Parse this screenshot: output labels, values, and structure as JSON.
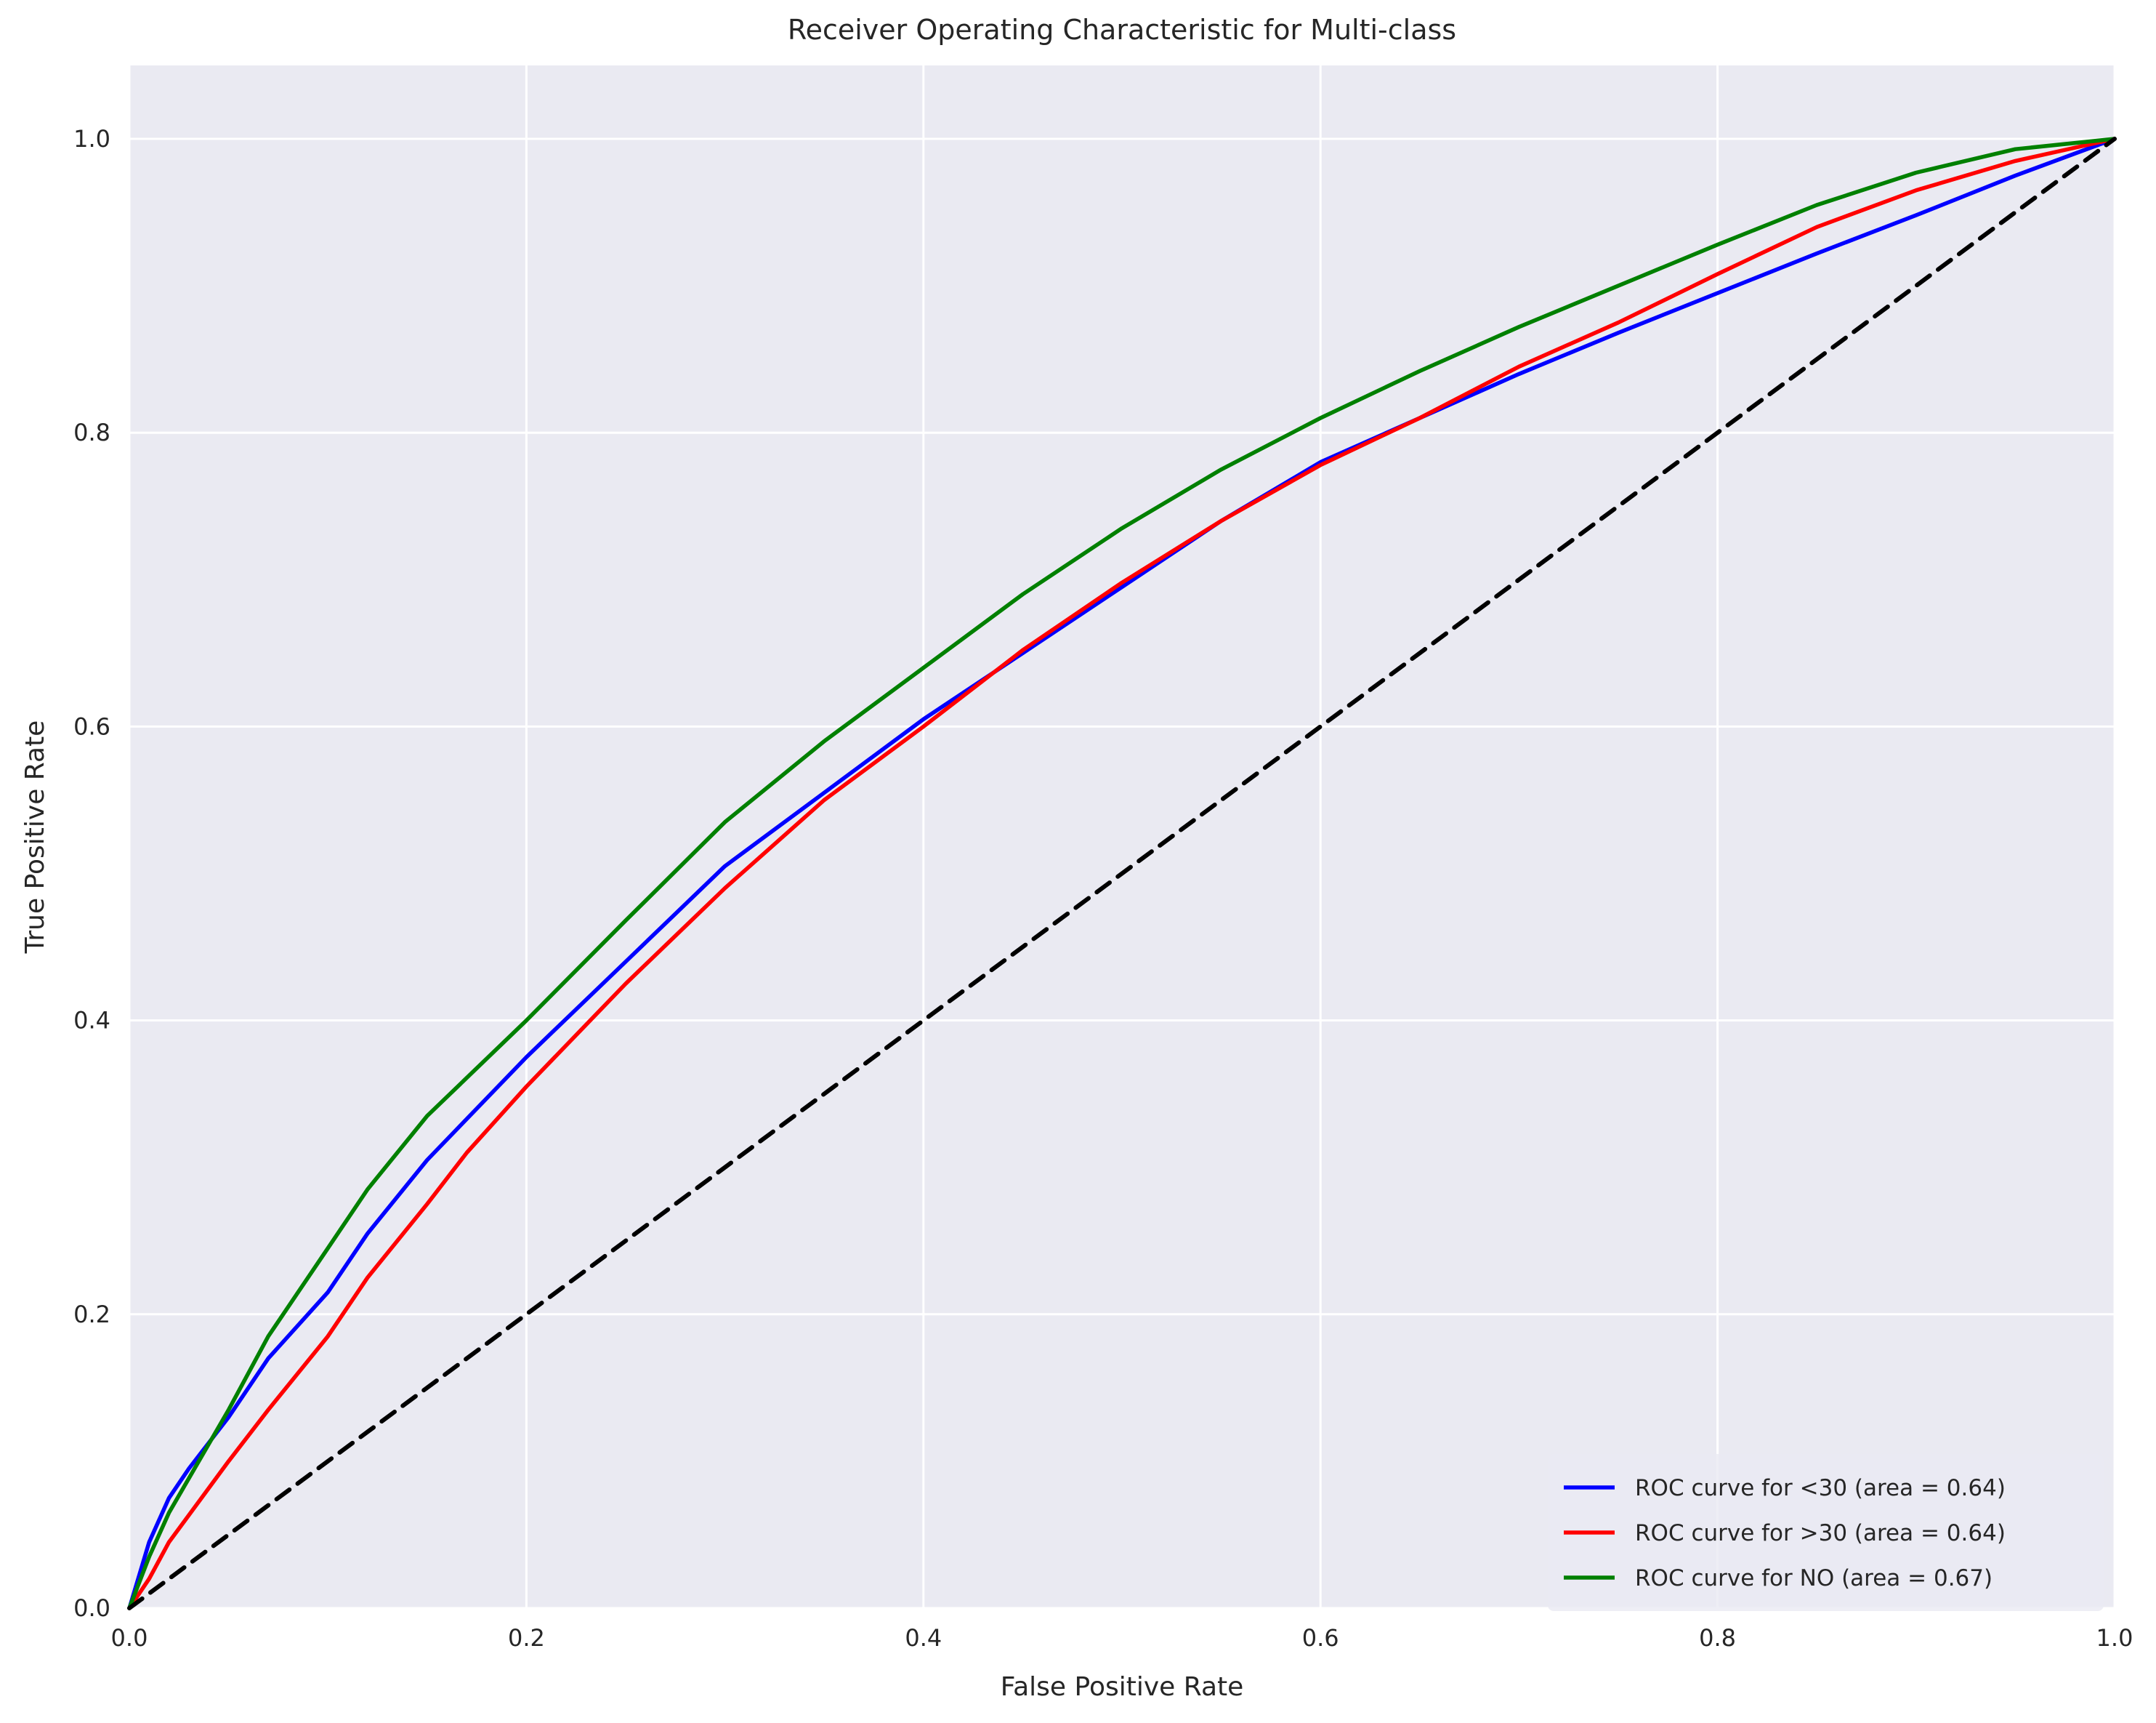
{
  "chart_data": {
    "type": "line",
    "title": "Receiver Operating Characteristic for Multi-class",
    "xlabel": "False Positive Rate",
    "ylabel": "True Positive Rate",
    "xlim": [
      0.0,
      1.0
    ],
    "ylim": [
      0.0,
      1.05
    ],
    "xticks": [
      0.0,
      0.2,
      0.4,
      0.6,
      0.8,
      1.0
    ],
    "xtick_labels": [
      "0.0",
      "0.2",
      "0.4",
      "0.6",
      "0.8",
      "1.0"
    ],
    "yticks": [
      0.0,
      0.2,
      0.4,
      0.6,
      0.8,
      1.0
    ],
    "ytick_labels": [
      "0.0",
      "0.2",
      "0.4",
      "0.6",
      "0.8",
      "1.0"
    ],
    "grid": true,
    "legend_position": "lower-right",
    "background_color": "#eaeaf2",
    "series": [
      {
        "name": "ROC curve for <30 (area = 0.64)",
        "color": "#0000ff",
        "points": [
          [
            0.0,
            0.0
          ],
          [
            0.01,
            0.045
          ],
          [
            0.02,
            0.075
          ],
          [
            0.03,
            0.095
          ],
          [
            0.05,
            0.13
          ],
          [
            0.07,
            0.17
          ],
          [
            0.1,
            0.215
          ],
          [
            0.12,
            0.255
          ],
          [
            0.15,
            0.305
          ],
          [
            0.2,
            0.375
          ],
          [
            0.25,
            0.44
          ],
          [
            0.3,
            0.505
          ],
          [
            0.35,
            0.555
          ],
          [
            0.4,
            0.605
          ],
          [
            0.45,
            0.65
          ],
          [
            0.5,
            0.695
          ],
          [
            0.55,
            0.74
          ],
          [
            0.6,
            0.78
          ],
          [
            0.65,
            0.81
          ],
          [
            0.7,
            0.84
          ],
          [
            0.75,
            0.868
          ],
          [
            0.8,
            0.895
          ],
          [
            0.85,
            0.922
          ],
          [
            0.9,
            0.948
          ],
          [
            0.95,
            0.975
          ],
          [
            1.0,
            1.0
          ]
        ]
      },
      {
        "name": "ROC curve for >30 (area = 0.64)",
        "color": "#ff0000",
        "points": [
          [
            0.0,
            0.0
          ],
          [
            0.01,
            0.02
          ],
          [
            0.02,
            0.045
          ],
          [
            0.05,
            0.1
          ],
          [
            0.07,
            0.135
          ],
          [
            0.1,
            0.185
          ],
          [
            0.12,
            0.225
          ],
          [
            0.15,
            0.275
          ],
          [
            0.17,
            0.31
          ],
          [
            0.2,
            0.355
          ],
          [
            0.25,
            0.425
          ],
          [
            0.3,
            0.49
          ],
          [
            0.35,
            0.55
          ],
          [
            0.4,
            0.6
          ],
          [
            0.45,
            0.652
          ],
          [
            0.5,
            0.698
          ],
          [
            0.55,
            0.74
          ],
          [
            0.6,
            0.778
          ],
          [
            0.65,
            0.81
          ],
          [
            0.7,
            0.845
          ],
          [
            0.75,
            0.875
          ],
          [
            0.8,
            0.908
          ],
          [
            0.85,
            0.94
          ],
          [
            0.9,
            0.965
          ],
          [
            0.95,
            0.985
          ],
          [
            1.0,
            1.0
          ]
        ]
      },
      {
        "name": "ROC curve for NO (area = 0.67)",
        "color": "#008000",
        "points": [
          [
            0.0,
            0.0
          ],
          [
            0.01,
            0.035
          ],
          [
            0.02,
            0.065
          ],
          [
            0.05,
            0.135
          ],
          [
            0.07,
            0.185
          ],
          [
            0.1,
            0.245
          ],
          [
            0.12,
            0.285
          ],
          [
            0.15,
            0.335
          ],
          [
            0.2,
            0.4
          ],
          [
            0.25,
            0.468
          ],
          [
            0.3,
            0.535
          ],
          [
            0.35,
            0.59
          ],
          [
            0.4,
            0.64
          ],
          [
            0.45,
            0.69
          ],
          [
            0.5,
            0.735
          ],
          [
            0.55,
            0.775
          ],
          [
            0.6,
            0.81
          ],
          [
            0.65,
            0.842
          ],
          [
            0.7,
            0.872
          ],
          [
            0.75,
            0.9
          ],
          [
            0.8,
            0.928
          ],
          [
            0.85,
            0.955
          ],
          [
            0.9,
            0.977
          ],
          [
            0.95,
            0.993
          ],
          [
            1.0,
            1.0
          ]
        ]
      },
      {
        "name": "",
        "color": "#000000",
        "dashed": true,
        "points": [
          [
            0.0,
            0.0
          ],
          [
            1.0,
            1.0
          ]
        ]
      }
    ]
  }
}
